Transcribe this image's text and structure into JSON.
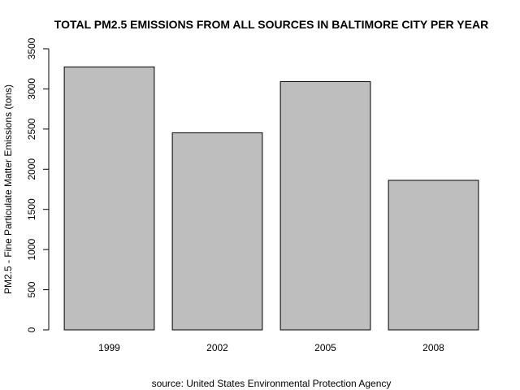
{
  "chart_data": {
    "type": "bar",
    "title": "TOTAL PM2.5 EMISSIONS FROM ALL SOURCES IN BALTIMORE CITY PER YEAR",
    "xlabel": "source: United States Environmental Protection Agency",
    "ylabel": "PM2.5 - Fine Particulate Matter Emissions (tons)",
    "categories": [
      "1999",
      "2002",
      "2005",
      "2008"
    ],
    "values": [
      3274,
      2454,
      3091,
      1862
    ],
    "ylim": [
      0,
      3500
    ],
    "yticks": [
      "0",
      "500",
      "1000",
      "1500",
      "2000",
      "2500",
      "3000",
      "3500"
    ],
    "grid": false,
    "bar_color": "#bebebe",
    "bar_border_color": "#000000"
  }
}
